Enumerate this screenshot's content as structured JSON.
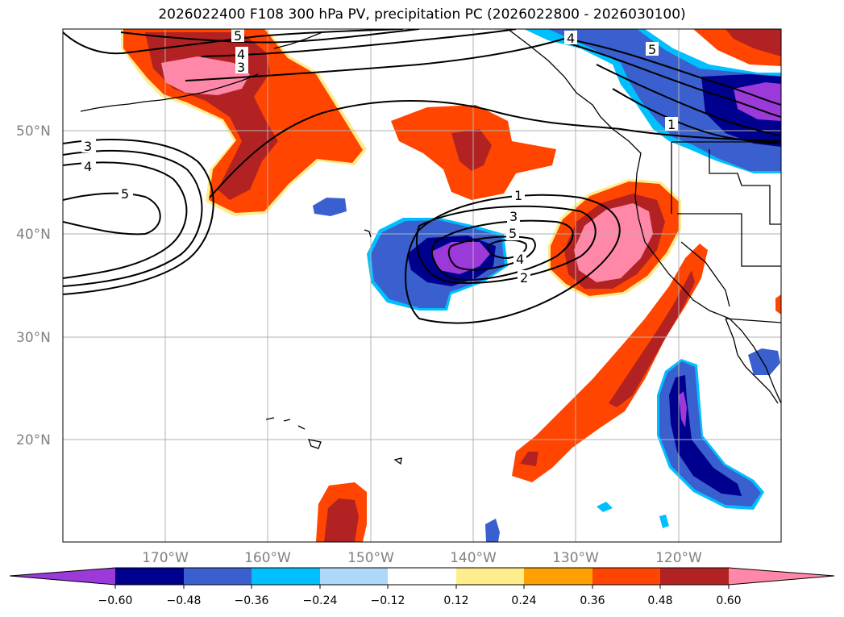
{
  "title": "2026022400 F108 300 hPa PV, precipitation PC (2026022800 - 2026030100)",
  "map": {
    "lat_labels": [
      "50°N",
      "40°N",
      "30°N",
      "20°N"
    ],
    "lon_labels": [
      "170°W",
      "160°W",
      "150°W",
      "140°W",
      "130°W",
      "120°W"
    ],
    "colors": {
      "neg_060_below": "#9b3ad8",
      "neg_048_060": "#00008f",
      "neg_036_048": "#3a5fcf",
      "neg_024_036": "#00bfff",
      "neg_012_024": "#add8f7",
      "pos_012_024": "#ffec8a",
      "pos_024_036": "#ffa000",
      "pos_036_048": "#ff4500",
      "pos_048_060": "#b22222",
      "pos_060_above": "#ff88a8"
    },
    "pv_contour_labels": [
      "1",
      "2",
      "3",
      "4",
      "5"
    ]
  },
  "colorbar": {
    "ticks": [
      "−0.60",
      "−0.48",
      "−0.36",
      "−0.24",
      "−0.12",
      "0.12",
      "0.24",
      "0.36",
      "0.48",
      "0.60"
    ],
    "bins": [
      "#9b3ad8",
      "#00008f",
      "#3a5fcf",
      "#00bfff",
      "#add8f7",
      "#ffffff",
      "#ffec8a",
      "#ffa000",
      "#ff4500",
      "#b22222",
      "#ff88a8"
    ]
  }
}
